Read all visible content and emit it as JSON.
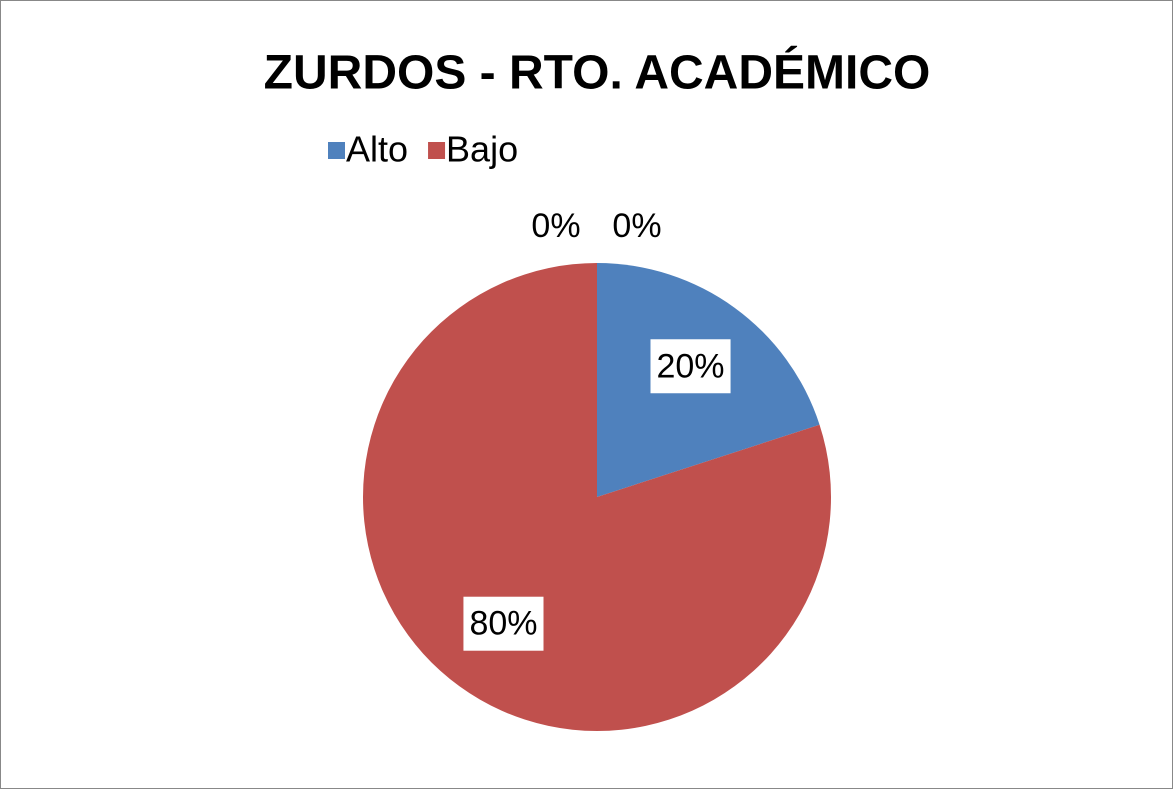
{
  "chart_data": {
    "type": "pie",
    "title": "ZURDOS - RTO. ACADÉMICO",
    "categories": [
      "Alto",
      "Bajo",
      null,
      null
    ],
    "values": [
      20,
      80,
      0,
      0
    ],
    "value_labels": [
      "20%",
      "80%",
      "0%",
      "0%"
    ],
    "colors": [
      "#4f81bd",
      "#c0504d",
      "#9bbb59",
      "#8064a2"
    ],
    "legend": "top"
  }
}
